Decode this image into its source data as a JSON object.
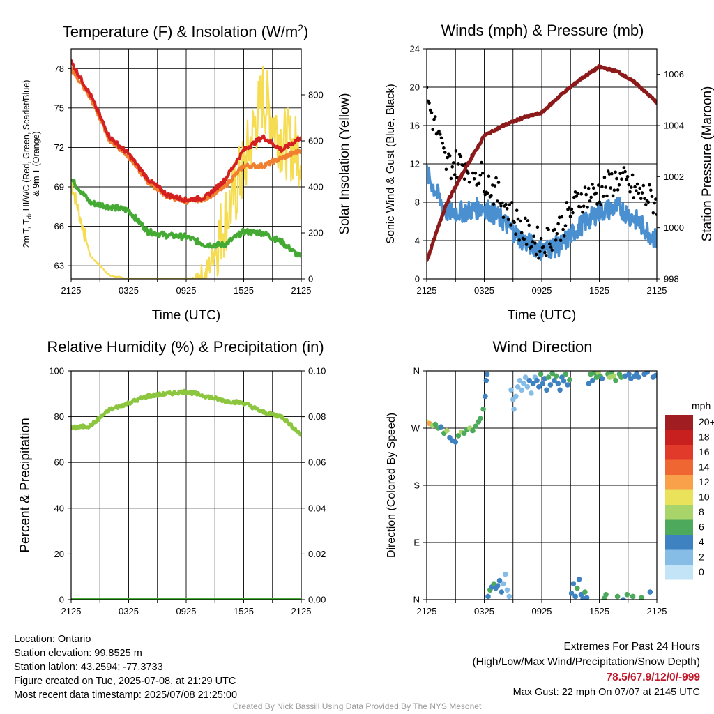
{
  "chart_data": [
    {
      "type": "line",
      "title": "Temperature (F) & Insolation (W/m²)",
      "xlabel": "Time (UTC)",
      "ylabel_left": "2m T, Td, HI/WC (Red, Green, Scarlet/Blue) & 9m T (Orange)",
      "ylabel_right": "Solar Insolation (Yellow)",
      "x_tick_labels": [
        "2125",
        "0325",
        "0925",
        "1525",
        "2125"
      ],
      "ylim": [
        62,
        79.5
      ],
      "y_ticks": [
        63,
        66,
        69,
        72,
        75,
        78
      ],
      "y2lim": [
        0,
        1000
      ],
      "y2_ticks": [
        0,
        200,
        400,
        600,
        800
      ],
      "x": [
        0,
        2,
        4,
        6,
        8,
        10,
        12,
        14,
        16,
        18,
        20,
        22,
        24
      ],
      "series": [
        {
          "name": "2m T",
          "color": "#d42020",
          "values": [
            78.5,
            76.0,
            72.8,
            71.5,
            69.6,
            68.4,
            68.0,
            68.2,
            69.5,
            71.8,
            72.8,
            71.8,
            72.8
          ]
        },
        {
          "name": "9m T",
          "color": "#f08030",
          "values": [
            78.0,
            75.8,
            72.6,
            71.3,
            69.4,
            68.3,
            67.9,
            68.1,
            69.0,
            70.6,
            70.6,
            71.2,
            71.8
          ]
        },
        {
          "name": "Td",
          "color": "#44aa33",
          "values": [
            69.6,
            67.8,
            67.5,
            67.2,
            65.6,
            65.3,
            65.2,
            64.6,
            64.6,
            65.6,
            65.5,
            64.8,
            63.6
          ]
        },
        {
          "name": "Solar Insolation",
          "color": "#f5dc50",
          "axis": "right",
          "values": [
            420,
            100,
            15,
            0,
            0,
            0,
            0,
            10,
            250,
            480,
            800,
            600,
            550
          ]
        }
      ]
    },
    {
      "type": "line",
      "title": "Winds (mph) & Pressure (mb)",
      "xlabel": "Time (UTC)",
      "ylabel_left": "Sonic Wind & Gust (Blue, Black)",
      "ylabel_right": "Station Pressure (Maroon)",
      "x_tick_labels": [
        "2125",
        "0325",
        "0925",
        "1525",
        "2125"
      ],
      "ylim": [
        0,
        24
      ],
      "y_ticks": [
        0,
        4,
        8,
        12,
        16,
        20,
        24
      ],
      "y2lim": [
        998,
        1007
      ],
      "y2_ticks": [
        998,
        1000,
        1002,
        1004,
        1006
      ],
      "x": [
        0,
        2,
        4,
        6,
        8,
        10,
        12,
        14,
        16,
        18,
        20,
        22,
        24
      ],
      "series": [
        {
          "name": "Sonic Wind",
          "color": "#4a90d0",
          "values": [
            11,
            7,
            7,
            7.5,
            6,
            4,
            3,
            3.5,
            5.5,
            7,
            7.5,
            6,
            4
          ]
        },
        {
          "name": "Gust",
          "color": "#000000",
          "values": [
            19,
            12,
            12,
            10.5,
            8,
            5,
            3.5,
            5.5,
            8.5,
            9,
            10.5,
            9,
            8
          ]
        },
        {
          "name": "Station Pressure",
          "color": "#8c1a1a",
          "axis": "right",
          "values": [
            998.7,
            1000.9,
            1002.3,
            1003.6,
            1004.0,
            1004.3,
            1004.5,
            1005.2,
            1005.8,
            1006.3,
            1006.1,
            1005.6,
            1004.9
          ]
        }
      ]
    },
    {
      "type": "line",
      "title": "Relative Humidity (%) & Precipitation (in)",
      "xlabel": "",
      "ylabel_left": "Percent & Precipitation",
      "x_tick_labels": [
        "2125",
        "0325",
        "0925",
        "1525",
        "2125"
      ],
      "ylim": [
        0,
        100
      ],
      "y_ticks": [
        0,
        20,
        40,
        60,
        80,
        100
      ],
      "y2lim": [
        0,
        0.1
      ],
      "y2_ticks": [
        "0.00",
        "0.02",
        "0.04",
        "0.06",
        "0.08",
        "0.10"
      ],
      "x": [
        0,
        2,
        4,
        6,
        8,
        10,
        12,
        14,
        16,
        18,
        20,
        22,
        24
      ],
      "series": [
        {
          "name": "Relative Humidity",
          "color": "#8cc63f",
          "values": [
            75,
            76,
            83,
            86,
            89,
            90,
            91,
            89,
            87,
            86,
            82,
            80,
            72
          ]
        },
        {
          "name": "Precipitation",
          "color": "#44aa33",
          "axis": "right",
          "values": [
            0,
            0,
            0,
            0,
            0,
            0,
            0,
            0,
            0,
            0,
            0,
            0,
            0
          ]
        }
      ]
    },
    {
      "type": "scatter",
      "title": "Wind Direction",
      "xlabel": "",
      "ylabel_left": "Direction (Colored By Speed)",
      "x_tick_labels": [
        "2125",
        "0325",
        "0925",
        "1525",
        "2125"
      ],
      "ylim": [
        0,
        360
      ],
      "y_tick_labels": [
        "N",
        "E",
        "S",
        "W",
        "N"
      ],
      "colorbar": {
        "title": "mph",
        "labels": [
          "20+",
          "18",
          "16",
          "14",
          "12",
          "10",
          "8",
          "6",
          "4",
          "2",
          "0"
        ],
        "colors": [
          "#a01d22",
          "#c8201f",
          "#e23a2a",
          "#f06633",
          "#f8a04a",
          "#e9e25a",
          "#a8d46a",
          "#4daa5c",
          "#3f82c2",
          "#86bde6",
          "#c3e4f6"
        ]
      },
      "points": [
        {
          "t": 0.0,
          "dir": 280,
          "spd": 10
        },
        {
          "t": 0.3,
          "dir": 277,
          "spd": 11
        },
        {
          "t": 0.6,
          "dir": 274,
          "spd": 8
        },
        {
          "t": 0.9,
          "dir": 276,
          "spd": 6
        },
        {
          "t": 1.2,
          "dir": 270,
          "spd": 5
        },
        {
          "t": 1.5,
          "dir": 272,
          "spd": 4
        },
        {
          "t": 1.8,
          "dir": 262,
          "spd": 6
        },
        {
          "t": 2.1,
          "dir": 266,
          "spd": 7
        },
        {
          "t": 2.4,
          "dir": 255,
          "spd": 4
        },
        {
          "t": 2.7,
          "dir": 250,
          "spd": 4
        },
        {
          "t": 3.0,
          "dir": 248,
          "spd": 3
        },
        {
          "t": 3.3,
          "dir": 258,
          "spd": 5
        },
        {
          "t": 3.6,
          "dir": 264,
          "spd": 7
        },
        {
          "t": 3.9,
          "dir": 262,
          "spd": 6
        },
        {
          "t": 4.2,
          "dir": 268,
          "spd": 6
        },
        {
          "t": 4.5,
          "dir": 270,
          "spd": 7
        },
        {
          "t": 4.8,
          "dir": 266,
          "spd": 6
        },
        {
          "t": 5.1,
          "dir": 273,
          "spd": 5
        },
        {
          "t": 5.4,
          "dir": 280,
          "spd": 6
        },
        {
          "t": 5.6,
          "dir": 285,
          "spd": 6
        },
        {
          "t": 5.9,
          "dir": 300,
          "spd": 5
        },
        {
          "t": 6.1,
          "dir": 320,
          "spd": 4
        },
        {
          "t": 6.2,
          "dir": 345,
          "spd": 4
        },
        {
          "t": 6.3,
          "dir": 355,
          "spd": 4
        },
        {
          "t": 6.4,
          "dir": 5,
          "spd": 4
        },
        {
          "t": 6.6,
          "dir": 15,
          "spd": 5
        },
        {
          "t": 6.8,
          "dir": 20,
          "spd": 3
        },
        {
          "t": 7.0,
          "dir": 25,
          "spd": 6
        },
        {
          "t": 7.2,
          "dir": 18,
          "spd": 4
        },
        {
          "t": 7.4,
          "dir": 22,
          "spd": 3
        },
        {
          "t": 7.6,
          "dir": 30,
          "spd": 4
        },
        {
          "t": 7.8,
          "dir": 12,
          "spd": 3
        },
        {
          "t": 8.0,
          "dir": 25,
          "spd": 2
        },
        {
          "t": 8.2,
          "dir": 40,
          "spd": 1
        },
        {
          "t": 8.4,
          "dir": 15,
          "spd": 2
        },
        {
          "t": 8.6,
          "dir": 5,
          "spd": 2
        },
        {
          "t": 8.8,
          "dir": 330,
          "spd": 2
        },
        {
          "t": 9.0,
          "dir": 315,
          "spd": 2
        },
        {
          "t": 9.1,
          "dir": 300,
          "spd": 2
        },
        {
          "t": 9.3,
          "dir": 320,
          "spd": 2
        },
        {
          "t": 9.5,
          "dir": 335,
          "spd": 1
        },
        {
          "t": 9.7,
          "dir": 345,
          "spd": 2
        },
        {
          "t": 9.9,
          "dir": 330,
          "spd": 1
        },
        {
          "t": 10.1,
          "dir": 340,
          "spd": 2
        },
        {
          "t": 10.3,
          "dir": 350,
          "spd": 2
        },
        {
          "t": 10.5,
          "dir": 335,
          "spd": 2
        },
        {
          "t": 10.7,
          "dir": 345,
          "spd": 3
        },
        {
          "t": 10.9,
          "dir": 325,
          "spd": 2
        },
        {
          "t": 11.1,
          "dir": 340,
          "spd": 3
        },
        {
          "t": 11.3,
          "dir": 350,
          "spd": 2
        },
        {
          "t": 11.5,
          "dir": 345,
          "spd": 4
        },
        {
          "t": 11.7,
          "dir": 335,
          "spd": 3
        },
        {
          "t": 11.9,
          "dir": 355,
          "spd": 5
        },
        {
          "t": 12.1,
          "dir": 340,
          "spd": 4
        },
        {
          "t": 12.3,
          "dir": 348,
          "spd": 3
        },
        {
          "t": 12.5,
          "dir": 330,
          "spd": 4
        },
        {
          "t": 12.7,
          "dir": 350,
          "spd": 5
        },
        {
          "t": 12.9,
          "dir": 338,
          "spd": 4
        },
        {
          "t": 13.1,
          "dir": 356,
          "spd": 6
        },
        {
          "t": 13.3,
          "dir": 345,
          "spd": 4
        },
        {
          "t": 13.5,
          "dir": 352,
          "spd": 5
        },
        {
          "t": 13.7,
          "dir": 340,
          "spd": 4
        },
        {
          "t": 13.9,
          "dir": 330,
          "spd": 3
        },
        {
          "t": 14.1,
          "dir": 350,
          "spd": 4
        },
        {
          "t": 14.3,
          "dir": 344,
          "spd": 4
        },
        {
          "t": 14.5,
          "dir": 355,
          "spd": 6
        },
        {
          "t": 14.7,
          "dir": 338,
          "spd": 4
        },
        {
          "t": 14.9,
          "dir": 346,
          "spd": 5
        },
        {
          "t": 15.1,
          "dir": 10,
          "spd": 4
        },
        {
          "t": 15.3,
          "dir": 25,
          "spd": 4
        },
        {
          "t": 15.5,
          "dir": 5,
          "spd": 4
        },
        {
          "t": 15.7,
          "dir": 18,
          "spd": 6
        },
        {
          "t": 15.9,
          "dir": 32,
          "spd": 3
        },
        {
          "t": 16.1,
          "dir": 8,
          "spd": 4
        },
        {
          "t": 16.3,
          "dir": 2,
          "spd": 4
        },
        {
          "t": 16.5,
          "dir": 12,
          "spd": 5
        },
        {
          "t": 16.7,
          "dir": 3,
          "spd": 4
        },
        {
          "t": 16.9,
          "dir": 340,
          "spd": 4
        },
        {
          "t": 17.1,
          "dir": 355,
          "spd": 5
        },
        {
          "t": 17.3,
          "dir": 345,
          "spd": 4
        },
        {
          "t": 17.5,
          "dir": 357,
          "spd": 6
        },
        {
          "t": 17.7,
          "dir": 350,
          "spd": 5
        },
        {
          "t": 17.9,
          "dir": 358,
          "spd": 7
        },
        {
          "t": 18.1,
          "dir": 352,
          "spd": 6
        },
        {
          "t": 18.3,
          "dir": 348,
          "spd": 4
        },
        {
          "t": 18.5,
          "dir": 2,
          "spd": 6
        },
        {
          "t": 18.7,
          "dir": 8,
          "spd": 5
        },
        {
          "t": 18.9,
          "dir": 355,
          "spd": 6
        },
        {
          "t": 19.1,
          "dir": 350,
          "spd": 8
        },
        {
          "t": 19.3,
          "dir": 358,
          "spd": 6
        },
        {
          "t": 19.5,
          "dir": 352,
          "spd": 7
        },
        {
          "t": 19.7,
          "dir": 345,
          "spd": 5
        },
        {
          "t": 19.9,
          "dir": 5,
          "spd": 6
        },
        {
          "t": 20.1,
          "dir": 355,
          "spd": 6
        },
        {
          "t": 20.3,
          "dir": 350,
          "spd": 5
        },
        {
          "t": 20.5,
          "dir": 0,
          "spd": 4
        },
        {
          "t": 20.7,
          "dir": 352,
          "spd": 4
        },
        {
          "t": 20.9,
          "dir": 8,
          "spd": 5
        },
        {
          "t": 21.1,
          "dir": 355,
          "spd": 4
        },
        {
          "t": 21.3,
          "dir": 348,
          "spd": 4
        },
        {
          "t": 21.5,
          "dir": 5,
          "spd": 6
        },
        {
          "t": 21.7,
          "dir": 352,
          "spd": 4
        },
        {
          "t": 21.9,
          "dir": 356,
          "spd": 4
        },
        {
          "t": 22.1,
          "dir": 350,
          "spd": 3
        },
        {
          "t": 22.4,
          "dir": 3,
          "spd": 5
        },
        {
          "t": 22.7,
          "dir": 355,
          "spd": 4
        },
        {
          "t": 23.0,
          "dir": 358,
          "spd": 3
        },
        {
          "t": 23.3,
          "dir": 12,
          "spd": 4
        },
        {
          "t": 23.6,
          "dir": 350,
          "spd": 4
        },
        {
          "t": 23.9,
          "dir": 353,
          "spd": 4
        }
      ]
    }
  ],
  "info": {
    "location": "Location: Ontario",
    "elevation": "Station elevation: 99.8525 m",
    "latlon": "Station lat/lon: 43.2594; -77.3733",
    "created": "Figure created on Tue, 2025-07-08, at 21:29 UTC",
    "recent": "Most recent data timestamp: 2025/07/08 21:25:00"
  },
  "extremes": {
    "title": "Extremes For Past 24 Hours",
    "subtitle": "(High/Low/Max Wind/Precipitation/Snow Depth)",
    "values": "78.5/67.9/12/0/-999",
    "gust": "Max Gust: 22 mph On 07/07 at 2145 UTC"
  },
  "credit": "Created By Nick Bassill Using Data Provided By The NYS Mesonet"
}
